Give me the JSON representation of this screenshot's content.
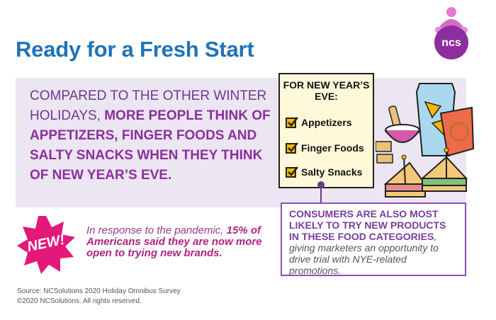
{
  "title": "Ready for a Fresh Start",
  "logo": {
    "text": "ncs",
    "icon": "hat-logo-icon",
    "color": "#8d2e9e"
  },
  "intro": {
    "plain": "COMPARED TO THE OTHER WINTER HOLIDAYS, ",
    "strong": "MORE PEOPLE THINK OF APPETIZERS, FINGER FOODS AND SALTY SNACKS WHEN THEY THINK OF NEW YEAR’S EVE."
  },
  "card": {
    "title": "FOR NEW YEAR’S EVE:",
    "items": [
      {
        "label": "Appetizers"
      },
      {
        "label": "Finger Foods"
      },
      {
        "label": "Salty Snacks"
      }
    ]
  },
  "consumers": {
    "strong": "CONSUMERS ARE ALSO MOST LIKELY TO TRY NEW PRODUCTS IN THESE FOOD CATEGORIES",
    "rest": ", giving marketers an opportunity to drive trial with NYE-related promotions."
  },
  "badge": {
    "text": "NEW!"
  },
  "pandemic": {
    "plain": "In response to the pandemic, ",
    "strong": "15% of Americans said they are now more open to trying new brands."
  },
  "source": {
    "line1": "Source: NCSolutions 2020 Holiday Omnibus Survey",
    "line2": "©2020 NCSolutions. All rights reserved."
  },
  "colors": {
    "title": "#1f73b7",
    "band": "#ece5f2",
    "purple": "#8d2e9e",
    "magenta": "#e3187a",
    "card": "#fff9d9",
    "check": "#f7b500"
  }
}
